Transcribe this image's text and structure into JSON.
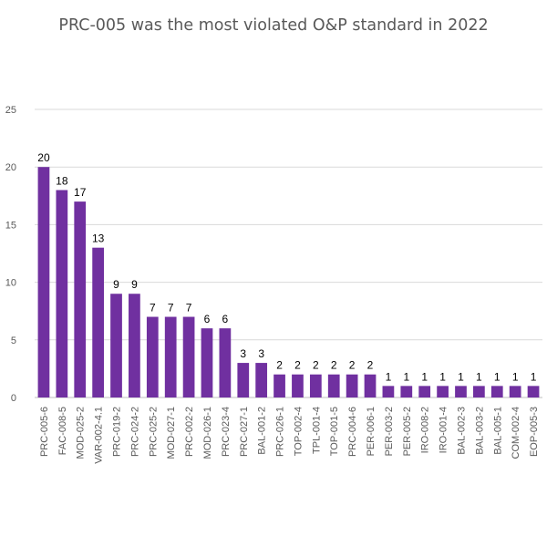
{
  "chart_data": {
    "type": "bar",
    "title": "PRC-005 was the most violated O&P standard in 2022",
    "xlabel": "",
    "ylabel": "",
    "ylim": [
      0,
      25
    ],
    "yticks": [
      0,
      5,
      10,
      15,
      20,
      25
    ],
    "grid": true,
    "legend": "none",
    "bar_color": "#7030A0",
    "categories": [
      "PRC-005-6",
      "FAC-008-5",
      "MOD-025-2",
      "VAR-002-4.1",
      "PRC-019-2",
      "PRC-024-2",
      "PRC-025-2",
      "MOD-027-1",
      "PRC-002-2",
      "MOD-026-1",
      "PRC-023-4",
      "PRC-027-1",
      "BAL-001-2",
      "PRC-026-1",
      "TOP-002-4",
      "TPL-001-4",
      "TOP-001-5",
      "PRC-004-6",
      "PER-006-1",
      "PER-003-2",
      "PER-005-2",
      "IRO-008-2",
      "IRO-001-4",
      "BAL-002-3",
      "BAL-003-2",
      "BAL-005-1",
      "COM-002-4",
      "EOP-005-3"
    ],
    "values": [
      20,
      18,
      17,
      13,
      9,
      9,
      7,
      7,
      7,
      6,
      6,
      3,
      3,
      2,
      2,
      2,
      2,
      2,
      2,
      1,
      1,
      1,
      1,
      1,
      1,
      1,
      1,
      1
    ]
  }
}
